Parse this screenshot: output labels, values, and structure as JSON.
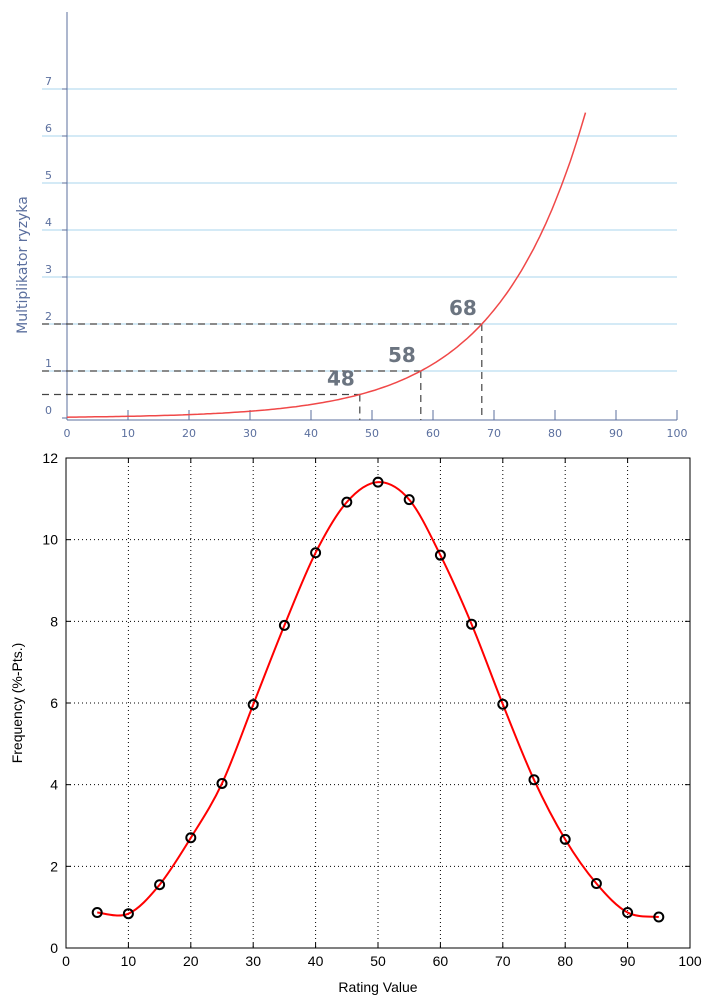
{
  "chart_data": [
    {
      "type": "line",
      "title": "",
      "xlabel": "",
      "ylabel": "Multiplikator ryzyka",
      "xlim": [
        0,
        100
      ],
      "ylim": [
        0,
        7
      ],
      "x_ticks": [
        "0",
        "10",
        "20",
        "30",
        "40",
        "50",
        "60",
        "70",
        "80",
        "90",
        "100"
      ],
      "y_ticks": [
        "0",
        "1",
        "2",
        "3",
        "4",
        "5",
        "6",
        "7"
      ],
      "grid": "horizontal",
      "colors": {
        "curve": "#f04848",
        "grid": "#a8d4ee",
        "axis": "#5b6f9e",
        "marker_text": "#6b7480",
        "dashes": "#444444"
      },
      "series": [
        {
          "x": [
            0,
            10,
            20,
            30,
            40,
            48,
            58,
            68,
            75,
            80,
            85
          ],
          "y": [
            0.0,
            0.02,
            0.07,
            0.17,
            0.35,
            0.5,
            1.0,
            2.0,
            3.3,
            4.6,
            6.6
          ]
        }
      ],
      "annotations": [
        {
          "label": "48",
          "x": 48,
          "y": 0.5
        },
        {
          "label": "58",
          "x": 58,
          "y": 1.0
        },
        {
          "label": "68",
          "x": 68,
          "y": 2.0
        }
      ]
    },
    {
      "type": "line",
      "title": "",
      "xlabel": "Rating Value",
      "ylabel": "Frequency (%-Pts.)",
      "xlim": [
        0,
        100
      ],
      "ylim": [
        0,
        12
      ],
      "x_ticks": [
        "0",
        "10",
        "20",
        "30",
        "40",
        "50",
        "60",
        "70",
        "80",
        "90",
        "100"
      ],
      "y_ticks": [
        "0",
        "2",
        "4",
        "6",
        "8",
        "10",
        "12"
      ],
      "grid": "dotted",
      "colors": {
        "line": "#ff0000",
        "marker": "#000000"
      },
      "series": [
        {
          "x": [
            5,
            10,
            15,
            20,
            25,
            30,
            35,
            40,
            45,
            50,
            55,
            60,
            65,
            70,
            75,
            80,
            85,
            90,
            95
          ],
          "y": [
            0.87,
            0.84,
            1.55,
            2.7,
            4.03,
            5.96,
            7.9,
            9.68,
            10.92,
            11.41,
            10.98,
            9.62,
            7.93,
            5.97,
            4.12,
            2.66,
            1.58,
            0.87,
            0.76
          ]
        }
      ]
    }
  ]
}
